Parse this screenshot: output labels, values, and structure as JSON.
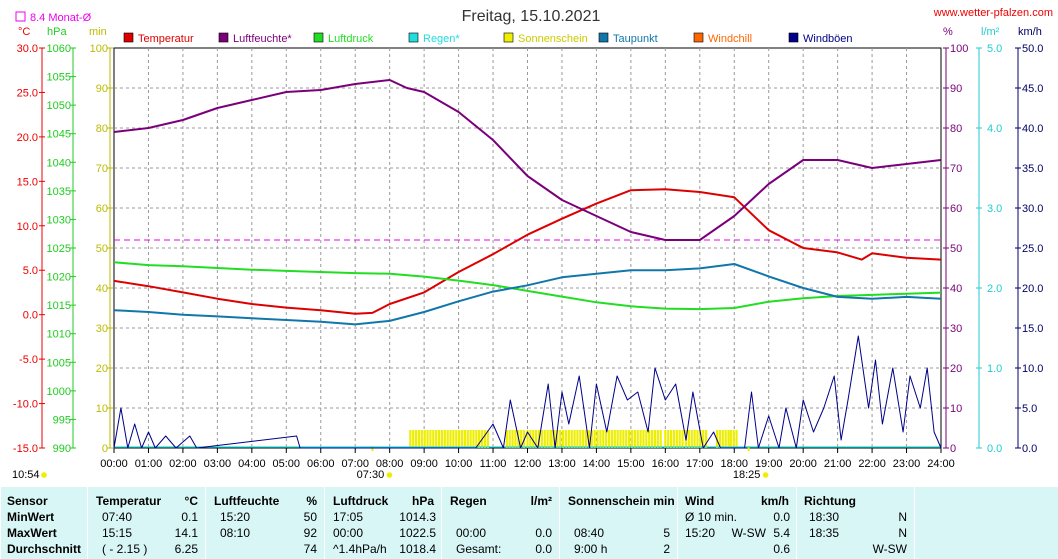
{
  "title": "Freitag, 15.10.2021",
  "site": "www.wetter-pfalzen.com",
  "monthly_avg_label": "8.4 Monat-Ø",
  "units_left": [
    "°C",
    "hPa",
    "min"
  ],
  "units_right": [
    "%",
    "l/m²",
    "km/h"
  ],
  "legend": [
    {
      "label": "Temperatur",
      "color": "#dd0000"
    },
    {
      "label": "Luftfeuchte*",
      "color": "#7a007a"
    },
    {
      "label": "Luftdruck",
      "color": "#22dd22"
    },
    {
      "label": "Regen*",
      "color": "#22dddd"
    },
    {
      "label": "Sonnenschein",
      "color": "#eeee00"
    },
    {
      "label": "Taupunkt",
      "color": "#1177aa"
    },
    {
      "label": "Windchill",
      "color": "#ff6600"
    },
    {
      "label": "Windböen",
      "color": "#000088"
    }
  ],
  "footer_time_left": "10:54",
  "sunrise": "07:30",
  "sunset": "18:25",
  "chart_data": {
    "type": "line",
    "x_ticks": [
      "00:00",
      "01:00",
      "02:00",
      "03:00",
      "04:00",
      "05:00",
      "06:00",
      "07:00",
      "08:00",
      "09:00",
      "10:00",
      "11:00",
      "12:00",
      "13:00",
      "14:00",
      "15:00",
      "16:00",
      "17:00",
      "18:00",
      "19:00",
      "20:00",
      "21:00",
      "22:00",
      "23:00",
      "24:00"
    ],
    "axes": {
      "temperature": {
        "unit": "°C",
        "range": [
          -15,
          30
        ],
        "ticks": [
          "30.0",
          "25.0",
          "20.0",
          "15.0",
          "10.0",
          "5.0",
          "0.0",
          "-5.0",
          "-10.0",
          "-15.0"
        ]
      },
      "pressure": {
        "unit": "hPa",
        "range": [
          990,
          1060
        ],
        "ticks": [
          "1060",
          "1055",
          "1050",
          "1045",
          "1040",
          "1035",
          "1030",
          "1025",
          "1020",
          "1015",
          "1010",
          "1005",
          "1000",
          "995",
          "990"
        ]
      },
      "sunshine": {
        "unit": "min",
        "range": [
          0,
          100
        ],
        "ticks": [
          "100",
          "90",
          "80",
          "70",
          "60",
          "50",
          "40",
          "30",
          "20",
          "10",
          "0"
        ]
      },
      "humidity": {
        "unit": "%",
        "range": [
          0,
          100
        ],
        "ticks": [
          "100",
          "90",
          "80",
          "70",
          "60",
          "50",
          "40",
          "30",
          "20",
          "10",
          "0"
        ]
      },
      "rain": {
        "unit": "l/m²",
        "range": [
          0,
          5
        ],
        "ticks": [
          "5.0",
          "4.0",
          "3.0",
          "2.0",
          "1.0",
          "0.0"
        ]
      },
      "wind": {
        "unit": "km/h",
        "range": [
          0,
          50
        ],
        "ticks": [
          "50.0",
          "45.0",
          "40.0",
          "35.0",
          "30.0",
          "25.0",
          "20.0",
          "15.0",
          "10.0",
          "5.0",
          "0.0"
        ]
      }
    },
    "monthly_avg_temperature": 8.4,
    "series": [
      {
        "name": "Temperatur",
        "axis": "temperature",
        "color": "#dd0000",
        "points": [
          [
            0,
            3.8
          ],
          [
            1,
            3.2
          ],
          [
            2,
            2.5
          ],
          [
            3,
            1.8
          ],
          [
            4,
            1.2
          ],
          [
            5,
            0.8
          ],
          [
            6,
            0.5
          ],
          [
            7,
            0.1
          ],
          [
            7.5,
            0.2
          ],
          [
            8,
            1.2
          ],
          [
            9,
            2.5
          ],
          [
            10,
            4.8
          ],
          [
            11,
            6.8
          ],
          [
            12,
            9.0
          ],
          [
            13,
            10.8
          ],
          [
            14,
            12.5
          ],
          [
            15,
            14.0
          ],
          [
            16,
            14.1
          ],
          [
            17,
            13.8
          ],
          [
            18,
            13.2
          ],
          [
            19,
            9.5
          ],
          [
            20,
            7.5
          ],
          [
            21,
            7.0
          ],
          [
            21.7,
            6.2
          ],
          [
            22,
            6.9
          ],
          [
            23,
            6.4
          ],
          [
            24,
            6.2
          ]
        ]
      },
      {
        "name": "Luftfeuchte*",
        "axis": "humidity",
        "color": "#7a007a",
        "points": [
          [
            0,
            79
          ],
          [
            1,
            80
          ],
          [
            2,
            82
          ],
          [
            3,
            85
          ],
          [
            4,
            87
          ],
          [
            5,
            89
          ],
          [
            6,
            89.5
          ],
          [
            7,
            91
          ],
          [
            8,
            92
          ],
          [
            8.5,
            90
          ],
          [
            9,
            89
          ],
          [
            10,
            84
          ],
          [
            11,
            77
          ],
          [
            12,
            68
          ],
          [
            13,
            62
          ],
          [
            14,
            58
          ],
          [
            15,
            54
          ],
          [
            16,
            52
          ],
          [
            17,
            52
          ],
          [
            18,
            58
          ],
          [
            19,
            66
          ],
          [
            20,
            72
          ],
          [
            21,
            72
          ],
          [
            22,
            70
          ],
          [
            23,
            71
          ],
          [
            24,
            72
          ]
        ]
      },
      {
        "name": "Luftdruck",
        "axis": "pressure",
        "color": "#22dd22",
        "points": [
          [
            0,
            1022.5
          ],
          [
            1,
            1022
          ],
          [
            2,
            1021.8
          ],
          [
            3,
            1021.5
          ],
          [
            4,
            1021.2
          ],
          [
            5,
            1021
          ],
          [
            6,
            1020.8
          ],
          [
            7,
            1020.6
          ],
          [
            8,
            1020.5
          ],
          [
            9,
            1020
          ],
          [
            10,
            1019.3
          ],
          [
            11,
            1018.5
          ],
          [
            12,
            1017.5
          ],
          [
            13,
            1016.5
          ],
          [
            14,
            1015.5
          ],
          [
            15,
            1014.8
          ],
          [
            16,
            1014.4
          ],
          [
            17,
            1014.3
          ],
          [
            18,
            1014.5
          ],
          [
            19,
            1015.6
          ],
          [
            20,
            1016.2
          ],
          [
            21,
            1016.6
          ],
          [
            22,
            1016.8
          ],
          [
            23,
            1017
          ],
          [
            24,
            1017.2
          ]
        ]
      },
      {
        "name": "Taupunkt",
        "axis": "temperature",
        "color": "#1177aa",
        "points": [
          [
            0,
            0.5
          ],
          [
            1,
            0.3
          ],
          [
            2,
            0
          ],
          [
            3,
            -0.2
          ],
          [
            4,
            -0.4
          ],
          [
            5,
            -0.6
          ],
          [
            6,
            -0.8
          ],
          [
            7,
            -1.1
          ],
          [
            8,
            -0.7
          ],
          [
            9,
            0.3
          ],
          [
            10,
            1.5
          ],
          [
            11,
            2.6
          ],
          [
            12,
            3.3
          ],
          [
            13,
            4.2
          ],
          [
            14,
            4.6
          ],
          [
            15,
            5.0
          ],
          [
            16,
            5.0
          ],
          [
            17,
            5.2
          ],
          [
            18,
            5.7
          ],
          [
            19,
            4.3
          ],
          [
            20,
            3.0
          ],
          [
            21,
            2.0
          ],
          [
            22,
            1.8
          ],
          [
            23,
            2.0
          ],
          [
            24,
            1.8
          ]
        ]
      },
      {
        "name": "Windböen",
        "axis": "wind",
        "color": "#000088",
        "points": [
          [
            0,
            0
          ],
          [
            0.2,
            5
          ],
          [
            0.4,
            0
          ],
          [
            0.6,
            3
          ],
          [
            0.8,
            0
          ],
          [
            1,
            2
          ],
          [
            1.2,
            0
          ],
          [
            1.5,
            1.5
          ],
          [
            1.8,
            0
          ],
          [
            2.2,
            1.5
          ],
          [
            2.4,
            0
          ],
          [
            5.3,
            1.5
          ],
          [
            5.4,
            0
          ],
          [
            10.5,
            0
          ],
          [
            11,
            3
          ],
          [
            11.3,
            0
          ],
          [
            11.5,
            6
          ],
          [
            11.8,
            0
          ],
          [
            12,
            2
          ],
          [
            12.3,
            0
          ],
          [
            12.6,
            8
          ],
          [
            12.8,
            0
          ],
          [
            13,
            7
          ],
          [
            13.2,
            3
          ],
          [
            13.5,
            9
          ],
          [
            13.8,
            0
          ],
          [
            14,
            8
          ],
          [
            14.3,
            2
          ],
          [
            14.6,
            9
          ],
          [
            14.9,
            6
          ],
          [
            15.2,
            7
          ],
          [
            15.5,
            2
          ],
          [
            15.7,
            10
          ],
          [
            16,
            6
          ],
          [
            16.3,
            8
          ],
          [
            16.6,
            1
          ],
          [
            16.8,
            7
          ],
          [
            17.1,
            0
          ],
          [
            17.4,
            2
          ],
          [
            17.6,
            0
          ],
          [
            18.3,
            0
          ],
          [
            18.5,
            7
          ],
          [
            18.7,
            0
          ],
          [
            19,
            4
          ],
          [
            19.3,
            0
          ],
          [
            19.5,
            5
          ],
          [
            19.8,
            0
          ],
          [
            20,
            6
          ],
          [
            20.3,
            2
          ],
          [
            20.6,
            5
          ],
          [
            20.9,
            9
          ],
          [
            21.1,
            1
          ],
          [
            21.3,
            6
          ],
          [
            21.6,
            14
          ],
          [
            21.9,
            5
          ],
          [
            22.1,
            11
          ],
          [
            22.3,
            3
          ],
          [
            22.6,
            10
          ],
          [
            22.9,
            2
          ],
          [
            23.1,
            9
          ],
          [
            23.4,
            5
          ],
          [
            23.6,
            10
          ],
          [
            23.8,
            2
          ],
          [
            24,
            0
          ]
        ]
      }
    ],
    "sunshine_intervals": [
      [
        8.6,
        10.6
      ],
      [
        10.6,
        10.9
      ],
      [
        11.4,
        11.9
      ],
      [
        12,
        12.7
      ],
      [
        12.7,
        15.9
      ],
      [
        16,
        16.5
      ],
      [
        16.6,
        17.2
      ],
      [
        17.5,
        17.9
      ],
      [
        17.9,
        18.1
      ]
    ]
  },
  "stats": {
    "sensor_label": "Sensor",
    "row_labels": [
      "MinWert",
      "MaxWert",
      "Durchschnitt"
    ],
    "temperature": {
      "title": "Temperatur",
      "unit": "°C",
      "rows": [
        [
          "07:40",
          "0.1"
        ],
        [
          "15:15",
          "14.1"
        ],
        [
          "( - 2.15 )",
          "6.25"
        ]
      ]
    },
    "humidity": {
      "title": "Luftfeuchte",
      "unit": "%",
      "rows": [
        [
          "15:20",
          "50"
        ],
        [
          "08:10",
          "92"
        ],
        [
          "",
          "74"
        ]
      ]
    },
    "pressure": {
      "title": "Luftdruck",
      "unit": "hPa",
      "rows": [
        [
          "17:05",
          "1014.3"
        ],
        [
          "00:00",
          "1022.5"
        ],
        [
          "^1.4hPa/h",
          "1018.4"
        ]
      ]
    },
    "rain": {
      "title": "Regen",
      "unit": "l/m²",
      "rows": [
        [
          "",
          ""
        ],
        [
          "00:00",
          "0.0"
        ],
        [
          "Gesamt:",
          "0.0"
        ]
      ]
    },
    "sunshine": {
      "title": "Sonnenschein min",
      "rows": [
        [
          "",
          ""
        ],
        [
          "08:40",
          "5"
        ],
        [
          "9:00 h",
          "2"
        ]
      ]
    },
    "wind": {
      "title": "Wind",
      "unit": "km/h",
      "rows": [
        [
          "Ø 10 min.",
          "",
          "0.0"
        ],
        [
          "15:20",
          "W-SW",
          "5.4"
        ],
        [
          "",
          "",
          "0.6"
        ]
      ]
    },
    "direction": {
      "title": "Richtung",
      "rows": [
        [
          "18:30",
          "N"
        ],
        [
          "18:35",
          "N"
        ],
        [
          "",
          "W-SW"
        ]
      ]
    }
  }
}
